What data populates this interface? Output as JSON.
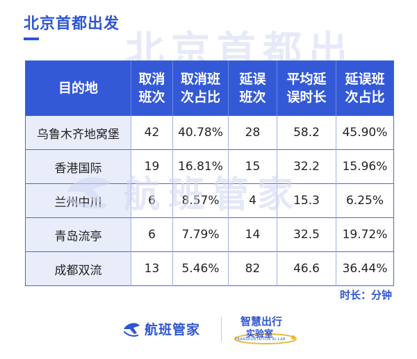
{
  "watermark": {
    "top_text": "北京首都出",
    "mid_text": "航班管家"
  },
  "page": {
    "title": "北京首都出发"
  },
  "table": {
    "headers": [
      {
        "line1": "目的地",
        "line2": ""
      },
      {
        "line1": "取消",
        "line2": "班次"
      },
      {
        "line1": "取消班",
        "line2": "次占比"
      },
      {
        "line1": "延误",
        "line2": "班次"
      },
      {
        "line1": "平均延",
        "line2": "误时长"
      },
      {
        "line1": "延误班",
        "line2": "次占比"
      }
    ],
    "rows": [
      [
        "乌鲁木齐地窝堡",
        "42",
        "40.78%",
        "28",
        "58.2",
        "45.90%"
      ],
      [
        "香港国际",
        "19",
        "16.81%",
        "15",
        "32.2",
        "15.96%"
      ],
      [
        "兰州中川",
        "6",
        "8.57%",
        "4",
        "15.3",
        "6.25%"
      ],
      [
        "青岛流亭",
        "6",
        "7.79%",
        "14",
        "32.5",
        "19.72%"
      ],
      [
        "成都双流",
        "13",
        "5.46%",
        "82",
        "46.6",
        "36.44%"
      ]
    ]
  },
  "unit_note": "时长：分钟",
  "footer": {
    "brand": "航班管家",
    "lab_title": "智慧出行",
    "lab_subtitle": "实验室",
    "lab_english": "TRANSPORTATION AI LAB"
  },
  "colors": {
    "accent": "#2f56d1",
    "header_bg": "#3359d7",
    "dest_cell_bg": "#e9edfa"
  }
}
